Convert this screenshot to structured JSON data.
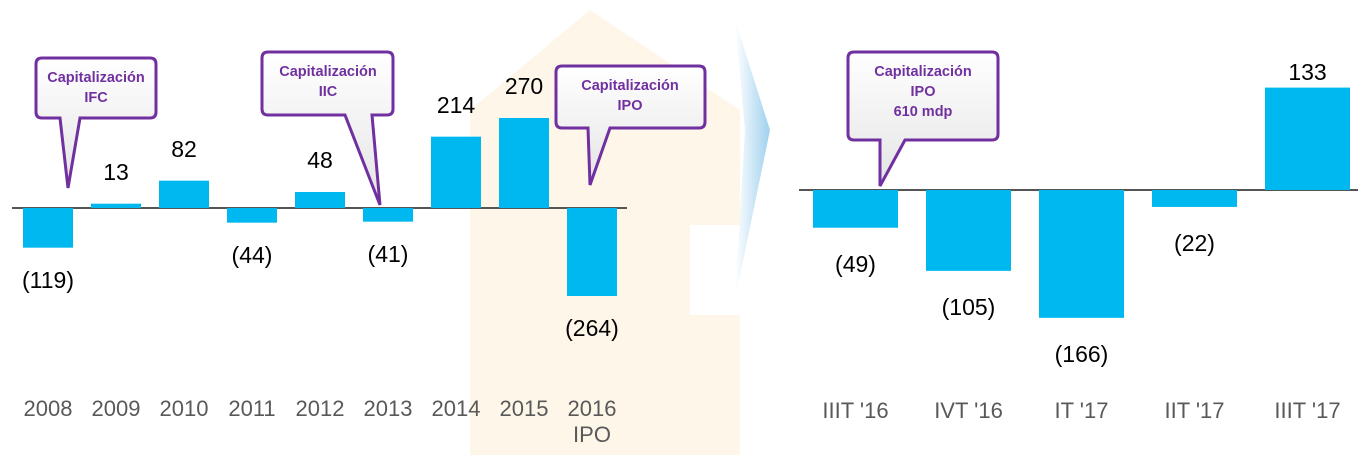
{
  "chart_data": [
    {
      "type": "bar",
      "color": "#00b8f0",
      "categories": [
        "2008",
        "2009",
        "2010",
        "2011",
        "2012",
        "2013",
        "2014",
        "2015",
        "2016 IPO"
      ],
      "values": [
        -119,
        13,
        82,
        -44,
        48,
        -41,
        214,
        270,
        -264
      ],
      "value_labels": [
        "(119)",
        "13",
        "82",
        "(44)",
        "48",
        "(41)",
        "214",
        "270",
        "(264)"
      ],
      "annotations": [
        {
          "lines": [
            "Capitalización",
            "IFC"
          ]
        },
        {
          "lines": [
            "Capitalización",
            "IIC"
          ]
        },
        {
          "lines": [
            "Capitalización",
            "IPO"
          ]
        }
      ]
    },
    {
      "type": "bar",
      "color": "#00b8f0",
      "categories": [
        "IIIT '16",
        "IVT '16",
        "IT '17",
        "IIT '17",
        "IIIT '17"
      ],
      "values": [
        -49,
        -105,
        -166,
        -22,
        133
      ],
      "value_labels": [
        "(49)",
        "(105)",
        "(166)",
        "(22)",
        "133"
      ],
      "annotations": [
        {
          "lines": [
            "Capitalización",
            "IPO",
            "610 mdp"
          ]
        }
      ]
    }
  ]
}
